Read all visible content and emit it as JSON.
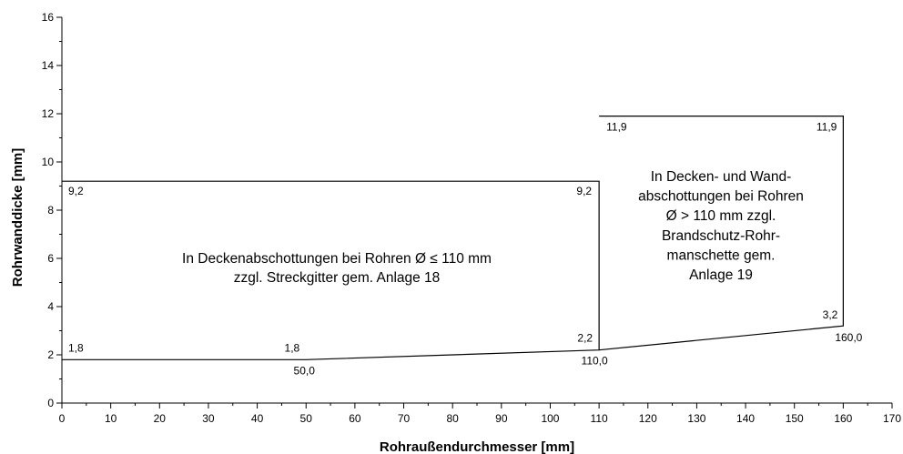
{
  "chart_data": {
    "type": "line",
    "xlabel": "Rohraußendurchmesser [mm]",
    "ylabel": "Rohrwanddicke [mm]",
    "xlim": [
      0,
      170
    ],
    "ylim": [
      0,
      16
    ],
    "x_ticks": [
      0,
      10,
      20,
      30,
      40,
      50,
      60,
      70,
      80,
      90,
      100,
      110,
      120,
      130,
      140,
      150,
      160,
      170
    ],
    "y_ticks": [
      0,
      2,
      4,
      6,
      8,
      10,
      12,
      14,
      16
    ],
    "grid": false,
    "regions": [
      {
        "boundary": [
          [
            0,
            9.2
          ],
          [
            110,
            9.2
          ],
          [
            110,
            2.2
          ],
          [
            50,
            1.8
          ],
          [
            0,
            1.8
          ]
        ],
        "label_lines": [
          "In Deckenabschottungen bei Rohren Ø ≤ 110 mm",
          "zzgl. Streckgitter gem. Anlage 18"
        ]
      },
      {
        "boundary": [
          [
            110,
            11.9
          ],
          [
            160,
            11.9
          ],
          [
            160,
            3.2
          ],
          [
            110,
            2.2
          ]
        ],
        "label_lines": [
          "In Decken- und Wand-",
          "abschottungen bei Rohren",
          "Ø > 110 mm zzgl.",
          "Brandschutz-Rohr-",
          "manschette gem.",
          "Anlage 19"
        ]
      }
    ],
    "point_labels": [
      {
        "x": 0,
        "y": 9.2,
        "text": "9,2"
      },
      {
        "x": 110,
        "y": 9.2,
        "text": "9,2"
      },
      {
        "x": 110,
        "y": 11.9,
        "text": "11,9"
      },
      {
        "x": 160,
        "y": 11.9,
        "text": "11,9"
      },
      {
        "x": 0,
        "y": 1.8,
        "text": "1,8"
      },
      {
        "x": 50,
        "y": 1.8,
        "text": "1,8"
      },
      {
        "x": 50,
        "y": 1.8,
        "text": "50,0"
      },
      {
        "x": 110,
        "y": 2.2,
        "text": "2,2"
      },
      {
        "x": 110,
        "y": 2.2,
        "text": "110,0"
      },
      {
        "x": 160,
        "y": 3.2,
        "text": "3,2"
      },
      {
        "x": 160,
        "y": 3.2,
        "text": "160,0"
      }
    ]
  }
}
